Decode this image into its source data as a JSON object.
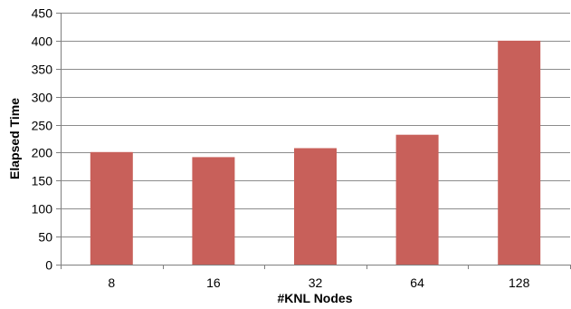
{
  "chart_data": {
    "type": "bar",
    "title": "",
    "xlabel": "#KNL Nodes",
    "ylabel": "Elapsed Time",
    "categories": [
      "8",
      "16",
      "32",
      "64",
      "128"
    ],
    "values": [
      201,
      192,
      208,
      232,
      400
    ],
    "ylim": [
      0,
      450
    ],
    "yticks": [
      0,
      50,
      100,
      150,
      200,
      250,
      300,
      350,
      400,
      450
    ],
    "grid": true,
    "legend": "none",
    "bar_color": "#c8605a",
    "grid_color": "#8c8c8c",
    "axis_color": "#7f7f7f"
  }
}
